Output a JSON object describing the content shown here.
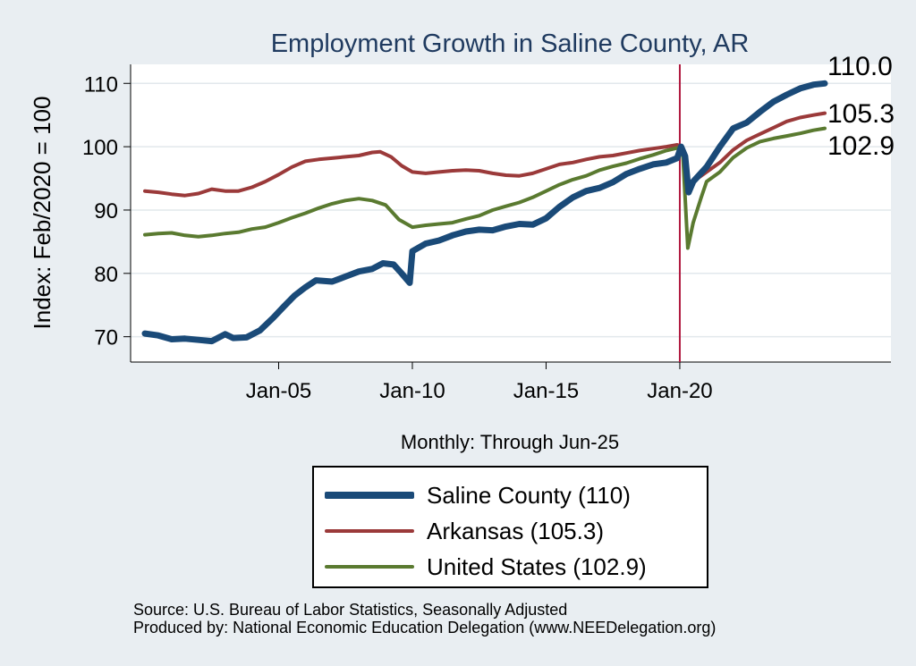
{
  "chart_data": {
    "type": "line",
    "title": "Employment Growth in Saline  County, AR",
    "xlabel": "Monthly: Through Jun-25",
    "ylabel": "Index: Feb/2020 = 100",
    "ylim": [
      66,
      113
    ],
    "y_ticks": [
      70,
      80,
      90,
      100,
      110
    ],
    "x_range": [
      2000.0,
      2025.42
    ],
    "x_ticks": [
      {
        "x": 2005.0,
        "label": "Jan-05"
      },
      {
        "x": 2010.0,
        "label": "Jan-10"
      },
      {
        "x": 2015.0,
        "label": "Jan-15"
      },
      {
        "x": 2020.0,
        "label": "Jan-20"
      }
    ],
    "reference_line": {
      "x": 2020.0,
      "color": "#b0193f"
    },
    "series": [
      {
        "name": "Saline  County",
        "legend": "Saline  County (110)",
        "end_label": "110.0",
        "color": "#1a4a78",
        "width": 7,
        "points": [
          [
            2000.0,
            70.5
          ],
          [
            2000.5,
            70.2
          ],
          [
            2001.0,
            69.6
          ],
          [
            2001.5,
            69.7
          ],
          [
            2002.0,
            69.5
          ],
          [
            2002.5,
            69.3
          ],
          [
            2003.0,
            70.4
          ],
          [
            2003.3,
            69.8
          ],
          [
            2003.8,
            69.9
          ],
          [
            2004.3,
            71.0
          ],
          [
            2004.8,
            73.0
          ],
          [
            2005.2,
            74.8
          ],
          [
            2005.6,
            76.5
          ],
          [
            2006.0,
            77.8
          ],
          [
            2006.4,
            78.9
          ],
          [
            2007.0,
            78.7
          ],
          [
            2007.5,
            79.5
          ],
          [
            2008.0,
            80.3
          ],
          [
            2008.5,
            80.7
          ],
          [
            2008.9,
            81.6
          ],
          [
            2009.3,
            81.4
          ],
          [
            2009.6,
            80.0
          ],
          [
            2009.9,
            78.5
          ],
          [
            2010.0,
            83.5
          ],
          [
            2010.5,
            84.7
          ],
          [
            2011.0,
            85.2
          ],
          [
            2011.5,
            86.0
          ],
          [
            2012.0,
            86.6
          ],
          [
            2012.5,
            86.9
          ],
          [
            2013.0,
            86.8
          ],
          [
            2013.5,
            87.4
          ],
          [
            2014.0,
            87.8
          ],
          [
            2014.5,
            87.7
          ],
          [
            2015.0,
            88.7
          ],
          [
            2015.5,
            90.5
          ],
          [
            2016.0,
            92.0
          ],
          [
            2016.5,
            93.0
          ],
          [
            2017.0,
            93.5
          ],
          [
            2017.5,
            94.4
          ],
          [
            2018.0,
            95.7
          ],
          [
            2018.5,
            96.5
          ],
          [
            2019.0,
            97.2
          ],
          [
            2019.5,
            97.5
          ],
          [
            2019.9,
            98.2
          ],
          [
            2020.05,
            100.0
          ],
          [
            2020.2,
            98.5
          ],
          [
            2020.33,
            92.8
          ],
          [
            2020.5,
            94.5
          ],
          [
            2021.0,
            96.8
          ],
          [
            2021.5,
            100.0
          ],
          [
            2022.0,
            102.9
          ],
          [
            2022.5,
            103.8
          ],
          [
            2023.0,
            105.5
          ],
          [
            2023.5,
            107.1
          ],
          [
            2024.0,
            108.2
          ],
          [
            2024.5,
            109.2
          ],
          [
            2025.0,
            109.8
          ],
          [
            2025.42,
            110.0
          ]
        ]
      },
      {
        "name": "Arkansas",
        "legend": "Arkansas (105.3)",
        "end_label": "105.3",
        "color": "#9b3a3a",
        "width": 4,
        "points": [
          [
            2000.0,
            93.0
          ],
          [
            2000.5,
            92.8
          ],
          [
            2001.0,
            92.5
          ],
          [
            2001.5,
            92.3
          ],
          [
            2002.0,
            92.6
          ],
          [
            2002.5,
            93.3
          ],
          [
            2003.0,
            93.0
          ],
          [
            2003.5,
            93.0
          ],
          [
            2004.0,
            93.6
          ],
          [
            2004.5,
            94.5
          ],
          [
            2005.0,
            95.6
          ],
          [
            2005.5,
            96.8
          ],
          [
            2006.0,
            97.7
          ],
          [
            2006.5,
            98.0
          ],
          [
            2007.0,
            98.2
          ],
          [
            2007.5,
            98.4
          ],
          [
            2008.0,
            98.6
          ],
          [
            2008.5,
            99.1
          ],
          [
            2008.8,
            99.2
          ],
          [
            2009.2,
            98.4
          ],
          [
            2009.6,
            97.0
          ],
          [
            2010.0,
            96.0
          ],
          [
            2010.5,
            95.8
          ],
          [
            2011.0,
            96.0
          ],
          [
            2011.5,
            96.2
          ],
          [
            2012.0,
            96.3
          ],
          [
            2012.5,
            96.2
          ],
          [
            2013.0,
            95.8
          ],
          [
            2013.5,
            95.5
          ],
          [
            2014.0,
            95.4
          ],
          [
            2014.5,
            95.8
          ],
          [
            2015.0,
            96.5
          ],
          [
            2015.5,
            97.2
          ],
          [
            2016.0,
            97.5
          ],
          [
            2016.5,
            98.0
          ],
          [
            2017.0,
            98.4
          ],
          [
            2017.5,
            98.6
          ],
          [
            2018.0,
            99.0
          ],
          [
            2018.5,
            99.4
          ],
          [
            2019.0,
            99.7
          ],
          [
            2019.5,
            100.0
          ],
          [
            2019.9,
            100.3
          ],
          [
            2020.1,
            100.0
          ],
          [
            2020.3,
            93.0
          ],
          [
            2020.5,
            94.5
          ],
          [
            2021.0,
            96.0
          ],
          [
            2021.5,
            97.5
          ],
          [
            2022.0,
            99.5
          ],
          [
            2022.5,
            101.0
          ],
          [
            2023.0,
            102.0
          ],
          [
            2023.5,
            103.0
          ],
          [
            2024.0,
            104.0
          ],
          [
            2024.5,
            104.6
          ],
          [
            2025.0,
            105.0
          ],
          [
            2025.42,
            105.3
          ]
        ]
      },
      {
        "name": "United States",
        "legend": "United States (102.9)",
        "end_label": "102.9",
        "color": "#5a7a30",
        "width": 4,
        "points": [
          [
            2000.0,
            86.1
          ],
          [
            2000.5,
            86.3
          ],
          [
            2001.0,
            86.4
          ],
          [
            2001.5,
            86.0
          ],
          [
            2002.0,
            85.8
          ],
          [
            2002.5,
            86.0
          ],
          [
            2003.0,
            86.3
          ],
          [
            2003.5,
            86.5
          ],
          [
            2004.0,
            87.0
          ],
          [
            2004.5,
            87.3
          ],
          [
            2005.0,
            88.0
          ],
          [
            2005.5,
            88.8
          ],
          [
            2006.0,
            89.5
          ],
          [
            2006.5,
            90.3
          ],
          [
            2007.0,
            91.0
          ],
          [
            2007.5,
            91.5
          ],
          [
            2008.0,
            91.8
          ],
          [
            2008.5,
            91.5
          ],
          [
            2009.0,
            90.8
          ],
          [
            2009.5,
            88.5
          ],
          [
            2010.0,
            87.3
          ],
          [
            2010.5,
            87.6
          ],
          [
            2011.0,
            87.8
          ],
          [
            2011.5,
            88.0
          ],
          [
            2012.0,
            88.6
          ],
          [
            2012.5,
            89.1
          ],
          [
            2013.0,
            90.0
          ],
          [
            2013.5,
            90.6
          ],
          [
            2014.0,
            91.2
          ],
          [
            2014.5,
            92.0
          ],
          [
            2015.0,
            93.0
          ],
          [
            2015.5,
            94.0
          ],
          [
            2016.0,
            94.8
          ],
          [
            2016.5,
            95.4
          ],
          [
            2017.0,
            96.3
          ],
          [
            2017.5,
            96.9
          ],
          [
            2018.0,
            97.4
          ],
          [
            2018.5,
            98.1
          ],
          [
            2019.0,
            98.7
          ],
          [
            2019.5,
            99.4
          ],
          [
            2019.9,
            99.8
          ],
          [
            2020.1,
            100.0
          ],
          [
            2020.3,
            84.0
          ],
          [
            2020.5,
            88.0
          ],
          [
            2020.8,
            92.0
          ],
          [
            2021.0,
            94.5
          ],
          [
            2021.5,
            96.0
          ],
          [
            2022.0,
            98.3
          ],
          [
            2022.5,
            99.8
          ],
          [
            2023.0,
            100.8
          ],
          [
            2023.5,
            101.3
          ],
          [
            2024.0,
            101.7
          ],
          [
            2024.5,
            102.1
          ],
          [
            2025.0,
            102.6
          ],
          [
            2025.42,
            102.9
          ]
        ]
      }
    ]
  },
  "footer": {
    "source": "Source: U.S. Bureau of Labor Statistics, Seasonally Adjusted",
    "produced": "Produced by: National Economic Education Delegation (www.NEEDelegation.org)"
  }
}
